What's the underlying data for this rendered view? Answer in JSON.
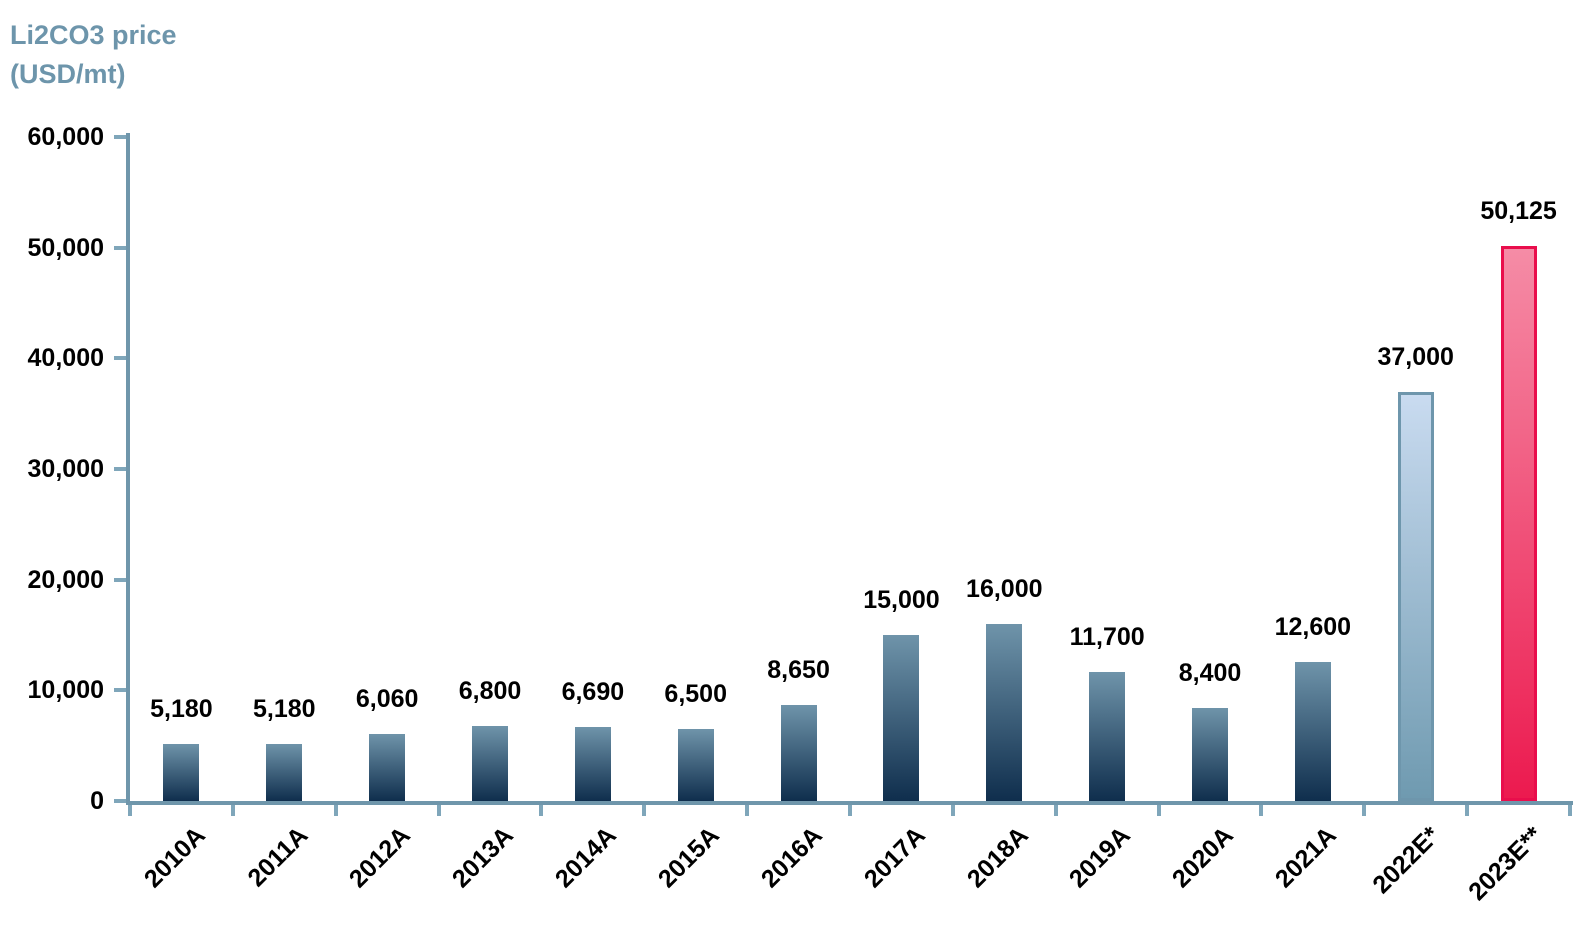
{
  "header": {
    "title_line1": "Li2CO3 price",
    "title_line2": "(USD/mt)"
  },
  "chart_data": {
    "type": "bar",
    "title": "Li2CO3 price (USD/mt)",
    "xlabel": "",
    "ylabel": "Li2CO3 price (USD/mt)",
    "categories": [
      "2010A",
      "2011A",
      "2012A",
      "2013A",
      "2014A",
      "2015A",
      "2016A",
      "2017A",
      "2018A",
      "2019A",
      "2020A",
      "2021A",
      "2022E*",
      "2023E**"
    ],
    "values": [
      5180,
      5180,
      6060,
      6800,
      6690,
      6500,
      8650,
      15000,
      16000,
      11700,
      8400,
      12600,
      37000,
      50125
    ],
    "value_labels": [
      "5,180",
      "5,180",
      "6,060",
      "6,800",
      "6,690",
      "6,500",
      "8,650",
      "15,000",
      "16,000",
      "11,700",
      "8,400",
      "12,600",
      "37,000",
      "50,125"
    ],
    "bar_styles": [
      "actual",
      "actual",
      "actual",
      "actual",
      "actual",
      "actual",
      "actual",
      "actual",
      "actual",
      "actual",
      "actual",
      "actual",
      "estimate2022",
      "estimate2023"
    ],
    "ylim": [
      0,
      60000
    ],
    "yticks": [
      0,
      10000,
      20000,
      30000,
      40000,
      50000,
      60000
    ],
    "ytick_labels": [
      "0",
      "10,000",
      "20,000",
      "30,000",
      "40,000",
      "50,000",
      "60,000"
    ],
    "grid": false,
    "legend_position": "none",
    "colors": {
      "title": "#6d95ab",
      "axis": "#6f96ab",
      "tick": "#7fa6ba",
      "actual_gradient_top": "#6f94aa",
      "actual_gradient_bottom": "#0f2e4d",
      "estimate2022_fill_top": "#c9dbf0",
      "estimate2022_fill_bottom": "#6f9ab0",
      "estimate2022_border": "#6e96ac",
      "estimate2023_fill_top": "#f58ca6",
      "estimate2023_fill_bottom": "#ec1a4f",
      "estimate2023_border": "#e90e4c",
      "data_label": "#000000"
    }
  }
}
